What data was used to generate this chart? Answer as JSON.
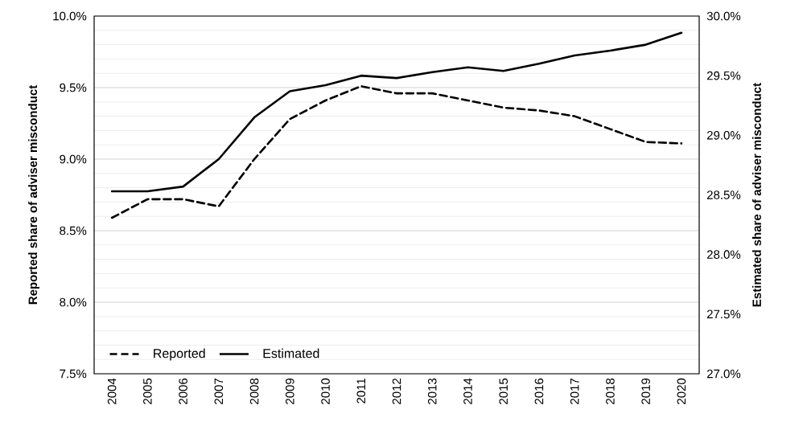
{
  "chart_data": {
    "type": "line",
    "categories": [
      "2004",
      "2005",
      "2006",
      "2007",
      "2008",
      "2009",
      "2010",
      "2011",
      "2012",
      "2013",
      "2014",
      "2015",
      "2016",
      "2017",
      "2018",
      "2019",
      "2020"
    ],
    "series": [
      {
        "name": "Reported",
        "color": "#000000",
        "line_style": "dashed",
        "values": [
          8.59,
          8.72,
          8.72,
          8.67,
          9.0,
          9.28,
          9.41,
          9.51,
          9.46,
          9.46,
          9.41,
          9.36,
          9.34,
          9.3,
          9.21,
          9.12,
          9.11
        ]
      },
      {
        "name": "Estimated",
        "color": "#000000",
        "line_style": "solid",
        "axis": "y2",
        "values": [
          28.53,
          28.53,
          28.57,
          28.8,
          29.15,
          29.37,
          29.42,
          29.5,
          29.48,
          29.53,
          29.57,
          29.54,
          29.6,
          29.67,
          29.71,
          29.76,
          29.86
        ]
      }
    ],
    "ylabel": "Reported share of adviser misconduct",
    "y2label": "Estimated share of adviser misconduct",
    "ylim": [
      7.5,
      10.0
    ],
    "yticks": [
      {
        "value": 7.5,
        "label": "7.5%"
      },
      {
        "value": 8.0,
        "label": "8.0%"
      },
      {
        "value": 8.5,
        "label": "8.5%"
      },
      {
        "value": 9.0,
        "label": "9.0%"
      },
      {
        "value": 9.5,
        "label": "9.5%"
      },
      {
        "value": 10.0,
        "label": "10.0%"
      }
    ],
    "y2lim": [
      27.0,
      30.0
    ],
    "y2ticks": [
      {
        "value": 27.0,
        "label": "27.0%"
      },
      {
        "value": 27.5,
        "label": "27.5%"
      },
      {
        "value": 28.0,
        "label": "28.0%"
      },
      {
        "value": 28.5,
        "label": "28.5%"
      },
      {
        "value": 29.0,
        "label": "29.0%"
      },
      {
        "value": 29.5,
        "label": "29.5%"
      },
      {
        "value": 30.0,
        "label": "30.0%"
      }
    ],
    "grid": "y",
    "legend": "bottom left"
  }
}
